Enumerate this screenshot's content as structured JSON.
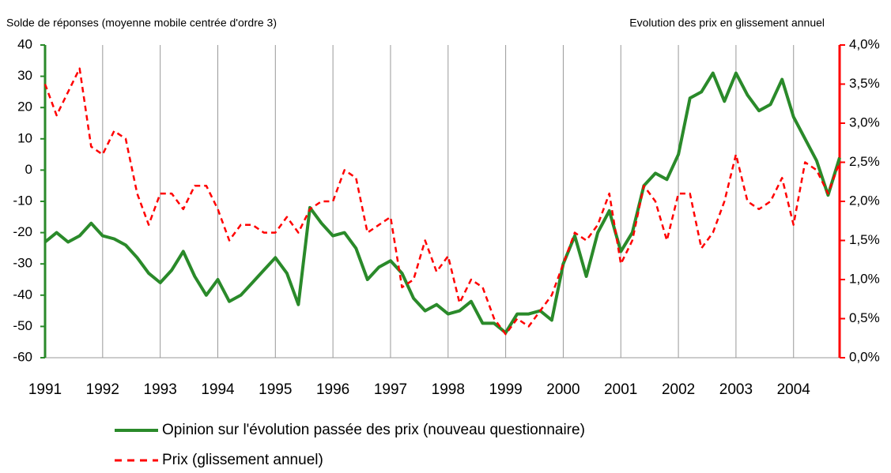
{
  "chart_data": {
    "type": "line",
    "y_label": "Solde de réponses (moyenne mobile centrée d'ordre 3)",
    "y2_label": "Evolution des prix en glissement annuel",
    "x": [
      1991.0,
      1991.2,
      1991.4,
      1991.6,
      1991.8,
      1992.0,
      1992.2,
      1992.4,
      1992.6,
      1992.8,
      1993.0,
      1993.2,
      1993.4,
      1993.6,
      1993.8,
      1994.0,
      1994.2,
      1994.4,
      1994.6,
      1994.8,
      1995.0,
      1995.2,
      1995.4,
      1995.6,
      1995.8,
      1996.0,
      1996.2,
      1996.4,
      1996.6,
      1996.8,
      1997.0,
      1997.2,
      1997.4,
      1997.6,
      1997.8,
      1998.0,
      1998.2,
      1998.4,
      1998.6,
      1998.8,
      1999.0,
      1999.2,
      1999.4,
      1999.6,
      1999.8,
      2000.0,
      2000.2,
      2000.4,
      2000.6,
      2000.8,
      2001.0,
      2001.2,
      2001.4,
      2001.6,
      2001.8,
      2002.0,
      2002.2,
      2002.4,
      2002.6,
      2002.8,
      2003.0,
      2003.2,
      2003.4,
      2003.6,
      2003.8,
      2004.0,
      2004.2,
      2004.4,
      2004.6,
      2004.8
    ],
    "series": [
      {
        "name": "Opinion sur l'évolution passée des prix (nouveau questionnaire)",
        "color": "#2a8a2a",
        "dash": false,
        "values": [
          -23,
          -20,
          -23,
          -21,
          -17,
          -21,
          -22,
          -24,
          -28,
          -33,
          -36,
          -32,
          -26,
          -34,
          -40,
          -35,
          -42,
          -40,
          -36,
          -32,
          -28,
          -33,
          -43,
          -12,
          -17,
          -21,
          -20,
          -25,
          -35,
          -31,
          -29,
          -33,
          -41,
          -45,
          -43,
          -46,
          -45,
          -42,
          -49,
          -49,
          -52,
          -46,
          -46,
          -45,
          -48,
          -30,
          -21,
          -34,
          -20,
          -13,
          -26,
          -20,
          -5,
          -1,
          -3,
          5,
          23,
          25,
          31,
          22,
          31,
          24,
          19,
          21,
          29,
          17,
          10,
          3,
          -8,
          4
        ]
      },
      {
        "name": "Prix (glissement annuel)",
        "color": "#ff0000",
        "dash": true,
        "axis": "y2",
        "values": [
          3.5,
          3.1,
          3.4,
          3.7,
          2.7,
          2.6,
          2.9,
          2.8,
          2.1,
          1.7,
          2.1,
          2.1,
          1.9,
          2.2,
          2.2,
          1.9,
          1.5,
          1.7,
          1.7,
          1.6,
          1.6,
          1.8,
          1.6,
          1.9,
          2.0,
          2.0,
          2.4,
          2.3,
          1.6,
          1.7,
          1.8,
          0.9,
          1.0,
          1.5,
          1.1,
          1.3,
          0.7,
          1.0,
          0.9,
          0.5,
          0.3,
          0.5,
          0.4,
          0.6,
          0.8,
          1.2,
          1.6,
          1.5,
          1.7,
          2.1,
          1.2,
          1.5,
          2.2,
          2.0,
          1.5,
          2.1,
          2.1,
          1.4,
          1.6,
          2.0,
          2.6,
          2.0,
          1.9,
          2.0,
          2.3,
          1.7,
          2.5,
          2.4,
          2.1,
          2.5
        ]
      }
    ],
    "xlim": [
      1991,
      2004.8
    ],
    "xticks": [
      1991,
      1992,
      1993,
      1994,
      1995,
      1996,
      1997,
      1998,
      1999,
      2000,
      2001,
      2002,
      2003,
      2004
    ],
    "ylim": [
      -60,
      40
    ],
    "yticks": [
      40,
      30,
      20,
      10,
      0,
      -10,
      -20,
      -30,
      -40,
      -50,
      -60
    ],
    "y2lim": [
      0,
      4
    ],
    "y2ticks": [
      {
        "value": 4,
        "label": "4,0%"
      },
      {
        "value": 3.5,
        "label": "3,5%"
      },
      {
        "value": 3,
        "label": "3,0%"
      },
      {
        "value": 2.5,
        "label": "2,5%"
      },
      {
        "value": 2,
        "label": "2,0%"
      },
      {
        "value": 1.5,
        "label": "1,5%"
      },
      {
        "value": 1,
        "label": "1,0%"
      },
      {
        "value": 0.5,
        "label": "0,5%"
      },
      {
        "value": 0,
        "label": "0,0%"
      }
    ],
    "x_grid": true,
    "legend": "bottom"
  }
}
